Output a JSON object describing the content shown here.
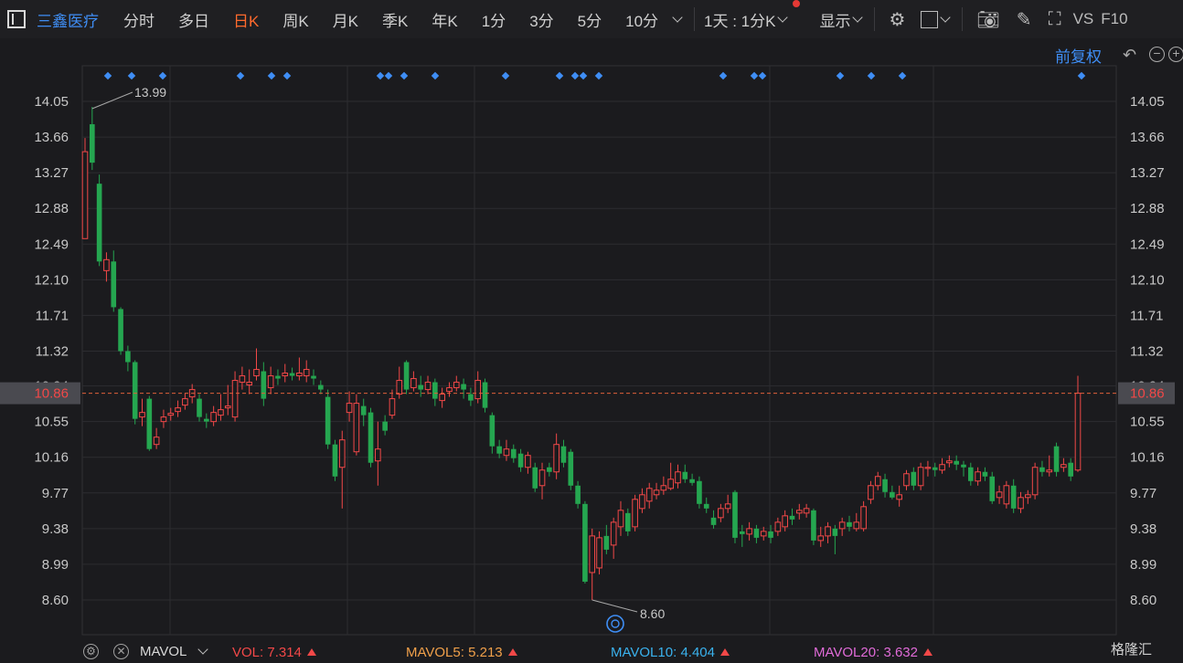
{
  "toolbar": {
    "stock_name": "三鑫医疗",
    "periods": [
      "分时",
      "多日",
      "日K",
      "周K",
      "月K",
      "季K",
      "年K",
      "1分",
      "3分",
      "5分",
      "10分"
    ],
    "active_period": "日K",
    "multi_period": "1天 : 1分K",
    "display": "显示",
    "vs": "VS",
    "f10": "F10"
  },
  "adjust": {
    "label": "前复权"
  },
  "price_axis": {
    "ticks": [
      "14.05",
      "13.66",
      "13.27",
      "12.88",
      "12.49",
      "12.10",
      "11.71",
      "11.32",
      "10.94",
      "10.55",
      "10.16",
      "9.77",
      "9.38",
      "8.99",
      "8.60"
    ],
    "current": "10.86"
  },
  "annotations": {
    "high": "13.99",
    "low": "8.60"
  },
  "indicator": {
    "name": "MAVOL",
    "vol_label": "VOL:",
    "vol": "7.314",
    "ma5_label": "MAVOL5:",
    "ma5": "5.213",
    "ma10_label": "MAVOL10:",
    "ma10": "4.404",
    "ma20_label": "MAVOL20:",
    "ma20": "3.632"
  },
  "colors": {
    "up": "#f24848",
    "down": "#25a650",
    "accent": "#3f8ef5",
    "active": "#ff6a2d",
    "ma5": "#f0a04a",
    "ma10": "#3ab2ee",
    "ma20": "#e06bd8"
  },
  "watermark": "格隆汇",
  "chart_data": {
    "type": "candlestick",
    "ylim": [
      8.46,
      14.14
    ],
    "candles": [
      [
        12.55,
        13.5,
        13.65,
        12.55
      ],
      [
        13.8,
        13.38,
        13.99,
        13.3
      ],
      [
        13.15,
        12.3,
        13.25,
        12.25
      ],
      [
        12.2,
        12.32,
        12.4,
        12.08
      ],
      [
        12.3,
        11.8,
        12.42,
        11.75
      ],
      [
        11.78,
        11.32,
        11.8,
        11.28
      ],
      [
        11.32,
        11.2,
        11.38,
        11.1
      ],
      [
        11.2,
        10.58,
        11.22,
        10.52
      ],
      [
        10.6,
        10.65,
        10.8,
        10.5
      ],
      [
        10.8,
        10.25,
        10.83,
        10.23
      ],
      [
        10.3,
        10.38,
        10.48,
        10.25
      ],
      [
        10.55,
        10.6,
        10.68,
        10.48
      ],
      [
        10.62,
        10.64,
        10.7,
        10.56
      ],
      [
        10.66,
        10.7,
        10.78,
        10.6
      ],
      [
        10.73,
        10.8,
        10.86,
        10.68
      ],
      [
        10.82,
        10.9,
        10.96,
        10.75
      ],
      [
        10.8,
        10.6,
        10.85,
        10.55
      ],
      [
        10.58,
        10.55,
        10.64,
        10.48
      ],
      [
        10.55,
        10.65,
        10.72,
        10.5
      ],
      [
        10.62,
        10.68,
        10.85,
        10.56
      ],
      [
        10.7,
        10.72,
        10.95,
        10.62
      ],
      [
        10.6,
        11.0,
        11.1,
        10.55
      ],
      [
        10.98,
        11.05,
        11.15,
        10.9
      ],
      [
        10.95,
        10.98,
        11.12,
        10.85
      ],
      [
        11.05,
        11.12,
        11.35,
        11.0
      ],
      [
        11.1,
        10.8,
        11.2,
        10.72
      ],
      [
        10.92,
        11.05,
        11.15,
        10.85
      ],
      [
        11.05,
        11.02,
        11.12,
        10.95
      ],
      [
        11.05,
        11.08,
        11.18,
        10.98
      ],
      [
        11.08,
        11.05,
        11.14,
        11.0
      ],
      [
        11.05,
        11.08,
        11.25,
        11.0
      ],
      [
        11.05,
        11.12,
        11.22,
        10.98
      ],
      [
        11.05,
        11.02,
        11.12,
        10.95
      ],
      [
        10.95,
        10.9,
        11.0,
        10.85
      ],
      [
        10.82,
        10.3,
        10.9,
        10.25
      ],
      [
        10.3,
        9.95,
        10.35,
        9.9
      ],
      [
        10.05,
        10.35,
        10.45,
        9.6
      ],
      [
        10.65,
        10.75,
        10.88,
        10.55
      ],
      [
        10.22,
        10.75,
        10.85,
        10.18
      ],
      [
        10.72,
        10.62,
        10.8,
        10.5
      ],
      [
        10.65,
        10.1,
        10.7,
        10.05
      ],
      [
        10.12,
        10.25,
        10.55,
        9.85
      ],
      [
        10.55,
        10.45,
        10.62,
        10.4
      ],
      [
        10.62,
        10.8,
        10.9,
        10.58
      ],
      [
        10.85,
        11.0,
        11.15,
        10.8
      ],
      [
        11.2,
        10.9,
        11.22,
        10.85
      ],
      [
        10.92,
        11.02,
        11.1,
        10.88
      ],
      [
        10.95,
        10.9,
        11.05,
        10.82
      ],
      [
        10.9,
        10.98,
        11.05,
        10.85
      ],
      [
        10.98,
        10.8,
        11.02,
        10.72
      ],
      [
        10.78,
        10.85,
        10.92,
        10.7
      ],
      [
        10.88,
        10.92,
        10.98,
        10.82
      ],
      [
        10.92,
        10.98,
        11.05,
        10.88
      ],
      [
        10.96,
        10.9,
        11.02,
        10.8
      ],
      [
        10.85,
        10.78,
        10.92,
        10.72
      ],
      [
        10.8,
        11.0,
        11.1,
        10.75
      ],
      [
        10.98,
        10.7,
        11.02,
        10.65
      ],
      [
        10.62,
        10.28,
        10.65,
        10.2
      ],
      [
        10.28,
        10.2,
        10.35,
        10.15
      ],
      [
        10.18,
        10.25,
        10.35,
        10.12
      ],
      [
        10.25,
        10.15,
        10.3,
        10.1
      ],
      [
        10.2,
        10.05,
        10.25,
        10.0
      ],
      [
        10.05,
        10.18,
        10.22,
        9.98
      ],
      [
        10.05,
        9.82,
        10.1,
        9.78
      ],
      [
        9.85,
        10.02,
        10.1,
        9.7
      ],
      [
        10.05,
        10.0,
        10.1,
        9.95
      ],
      [
        10.0,
        10.3,
        10.42,
        9.92
      ],
      [
        10.28,
        10.1,
        10.35,
        10.05
      ],
      [
        10.22,
        9.85,
        10.25,
        9.8
      ],
      [
        9.85,
        9.65,
        9.9,
        9.6
      ],
      [
        9.65,
        8.8,
        9.68,
        8.78
      ],
      [
        8.9,
        9.3,
        9.38,
        8.6
      ],
      [
        8.95,
        9.28,
        9.35,
        8.88
      ],
      [
        9.3,
        9.15,
        9.42,
        9.1
      ],
      [
        9.2,
        9.45,
        9.5,
        9.05
      ],
      [
        9.4,
        9.58,
        9.68,
        9.3
      ],
      [
        9.55,
        9.35,
        9.6,
        9.3
      ],
      [
        9.4,
        9.7,
        9.75,
        9.35
      ],
      [
        9.6,
        9.75,
        9.82,
        9.55
      ],
      [
        9.68,
        9.82,
        9.88,
        9.6
      ],
      [
        9.75,
        9.8,
        9.88,
        9.7
      ],
      [
        9.8,
        9.85,
        9.95,
        9.75
      ],
      [
        9.82,
        9.92,
        10.1,
        9.8
      ],
      [
        9.88,
        10.0,
        10.08,
        9.82
      ],
      [
        10.0,
        9.92,
        10.08,
        9.88
      ],
      [
        9.92,
        9.88,
        9.98,
        9.85
      ],
      [
        9.9,
        9.65,
        9.95,
        9.6
      ],
      [
        9.65,
        9.6,
        9.72,
        9.55
      ],
      [
        9.5,
        9.42,
        9.58,
        9.38
      ],
      [
        9.5,
        9.6,
        9.65,
        9.45
      ],
      [
        9.6,
        9.65,
        9.75,
        9.55
      ],
      [
        9.78,
        9.28,
        9.8,
        9.22
      ],
      [
        9.35,
        9.32,
        9.42,
        9.18
      ],
      [
        9.32,
        9.38,
        9.45,
        9.25
      ],
      [
        9.38,
        9.28,
        9.42,
        9.22
      ],
      [
        9.3,
        9.35,
        9.4,
        9.25
      ],
      [
        9.35,
        9.28,
        9.42,
        9.22
      ],
      [
        9.35,
        9.45,
        9.5,
        9.3
      ],
      [
        9.4,
        9.52,
        9.58,
        9.35
      ],
      [
        9.52,
        9.48,
        9.6,
        9.42
      ],
      [
        9.55,
        9.58,
        9.65,
        9.48
      ],
      [
        9.55,
        9.6,
        9.65,
        9.5
      ],
      [
        9.58,
        9.25,
        9.6,
        9.2
      ],
      [
        9.25,
        9.3,
        9.4,
        9.18
      ],
      [
        9.3,
        9.4,
        9.45,
        9.22
      ],
      [
        9.38,
        9.3,
        9.42,
        9.1
      ],
      [
        9.38,
        9.45,
        9.5,
        9.3
      ],
      [
        9.45,
        9.4,
        9.52,
        9.35
      ],
      [
        9.38,
        9.45,
        9.55,
        9.35
      ],
      [
        9.38,
        9.62,
        9.68,
        9.35
      ],
      [
        9.7,
        9.85,
        9.9,
        9.65
      ],
      [
        9.85,
        9.95,
        10.0,
        9.8
      ],
      [
        9.92,
        9.78,
        9.98,
        9.72
      ],
      [
        9.78,
        9.72,
        9.85,
        9.7
      ],
      [
        9.7,
        9.75,
        9.85,
        9.62
      ],
      [
        9.85,
        9.98,
        10.02,
        9.8
      ],
      [
        10.0,
        9.85,
        10.05,
        9.8
      ],
      [
        9.85,
        10.05,
        10.1,
        9.8
      ],
      [
        10.05,
        10.05,
        10.12,
        9.95
      ],
      [
        10.05,
        10.02,
        10.1,
        9.95
      ],
      [
        10.02,
        10.08,
        10.15,
        9.98
      ],
      [
        10.1,
        10.12,
        10.18,
        10.05
      ],
      [
        10.12,
        10.08,
        10.18,
        10.02
      ],
      [
        10.08,
        10.05,
        10.12,
        9.95
      ],
      [
        10.05,
        9.9,
        10.1,
        9.85
      ],
      [
        9.9,
        10.0,
        10.05,
        9.85
      ],
      [
        10.0,
        9.95,
        10.05,
        9.9
      ],
      [
        9.95,
        9.68,
        10.0,
        9.65
      ],
      [
        9.72,
        9.78,
        9.85,
        9.65
      ],
      [
        9.65,
        9.85,
        9.9,
        9.6
      ],
      [
        9.85,
        9.6,
        9.92,
        9.55
      ],
      [
        9.6,
        9.72,
        9.78,
        9.55
      ],
      [
        9.72,
        9.75,
        9.8,
        9.65
      ],
      [
        9.75,
        10.05,
        10.1,
        9.7
      ],
      [
        10.05,
        10.0,
        10.12,
        9.95
      ],
      [
        10.0,
        10.02,
        10.18,
        9.95
      ],
      [
        10.28,
        10.0,
        10.32,
        9.95
      ],
      [
        10.05,
        10.08,
        10.15,
        10.0
      ],
      [
        10.1,
        9.95,
        10.15,
        9.9
      ],
      [
        10.02,
        10.86,
        11.05,
        10.0
      ]
    ]
  }
}
